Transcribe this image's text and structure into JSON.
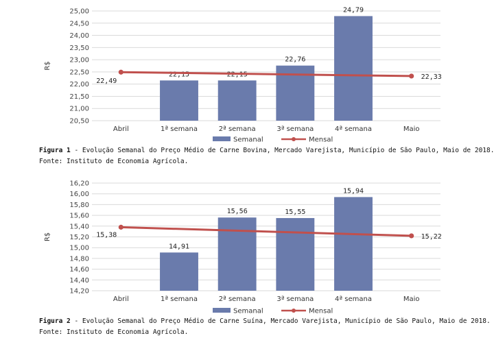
{
  "chart_data": [
    {
      "type": "bar",
      "ylabel": "R$",
      "ylim": [
        20.5,
        25.0
      ],
      "yticks": [
        "20,50",
        "21,00",
        "21,50",
        "22,00",
        "22,50",
        "23,00",
        "23,50",
        "24,00",
        "24,50",
        "25,00"
      ],
      "categories": [
        "Abril",
        "1ª semana",
        "2ª semana",
        "3ª semana",
        "4ª semana",
        "Maio"
      ],
      "series": [
        {
          "name": "Semanal",
          "kind": "bar",
          "color": "#6a7bac",
          "values": [
            null,
            22.15,
            22.15,
            22.76,
            24.79,
            null
          ],
          "labels": [
            "",
            "22,15",
            "22,15",
            "22,76",
            "24,79",
            ""
          ]
        },
        {
          "name": "Mensal",
          "kind": "line",
          "color": "#c0504d",
          "values": [
            22.49,
            null,
            null,
            null,
            null,
            22.33
          ],
          "labels": [
            "22,49",
            "",
            "",
            "",
            "",
            "22,33"
          ]
        }
      ],
      "legend": "bottom",
      "caption_label": "Figura 1",
      "caption_text": " - Evolução Semanal do Preço Médio de Carne Bovina, Mercado Varejista, Município de São Paulo, Maio de 2018.",
      "source": "Fonte: Instituto de Economia Agrícola."
    },
    {
      "type": "bar",
      "ylabel": "R$",
      "ylim": [
        14.2,
        16.2
      ],
      "yticks": [
        "14,20",
        "14,40",
        "14,60",
        "14,80",
        "15,00",
        "15,20",
        "15,40",
        "15,60",
        "15,80",
        "16,00",
        "16,20"
      ],
      "categories": [
        "Abril",
        "1ª semana",
        "2ª semana",
        "3ª semana",
        "4ª semana",
        "Maio"
      ],
      "series": [
        {
          "name": "Semanal",
          "kind": "bar",
          "color": "#6a7bac",
          "values": [
            null,
            14.91,
            15.56,
            15.55,
            15.94,
            null
          ],
          "labels": [
            "",
            "14,91",
            "15,56",
            "15,55",
            "15,94",
            ""
          ]
        },
        {
          "name": "Mensal",
          "kind": "line",
          "color": "#c0504d",
          "values": [
            15.38,
            null,
            null,
            null,
            null,
            15.22
          ],
          "labels": [
            "15,38",
            "",
            "",
            "",
            "",
            "15,22"
          ]
        }
      ],
      "legend": "bottom",
      "caption_label": "Figura 2",
      "caption_text": " - Evolução Semanal do Preço Médio de Carne Suína, Mercado Varejista, Município de São Paulo, Maio de 2018.",
      "source": "Fonte: Instituto de Economia Agrícola."
    }
  ]
}
